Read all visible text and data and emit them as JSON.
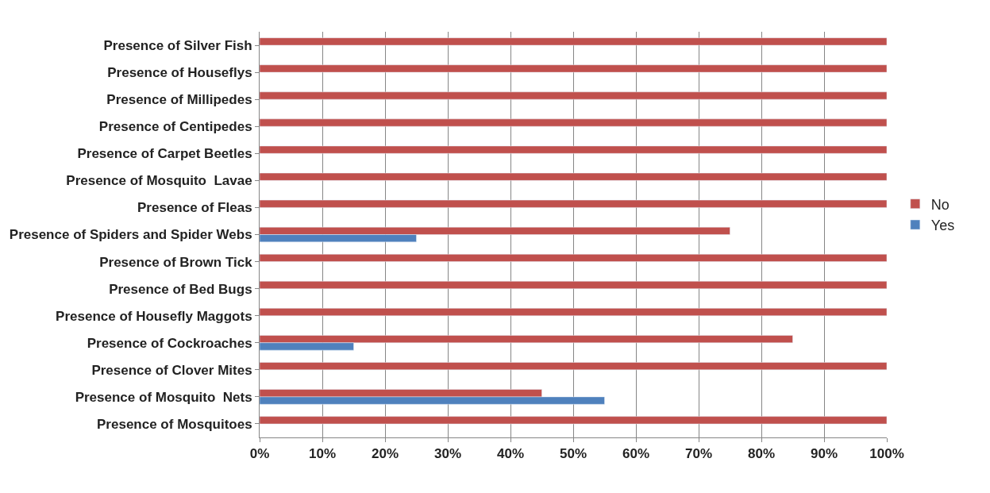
{
  "chart_data": {
    "type": "bar",
    "orientation": "horizontal",
    "categories": [
      "Presence of Silver Fish",
      "Presence of Houseflys",
      "Presence of Millipedes",
      "Presence of Centipedes",
      "Presence of Carpet Beetles",
      "Presence of Mosquito  Lavae",
      "Presence of Fleas",
      "Presence of Spiders and Spider Webs",
      "Presence of Brown Tick",
      "Presence of Bed Bugs",
      "Presence of Housefly Maggots",
      "Presence of Cockroaches",
      "Presence of Clover Mites",
      "Presence of Mosquito  Nets",
      "Presence of Mosquitoes"
    ],
    "series": [
      {
        "name": "No",
        "color": "#c0504d",
        "values": [
          100,
          100,
          100,
          100,
          100,
          100,
          100,
          75,
          100,
          100,
          100,
          85,
          100,
          45,
          100
        ]
      },
      {
        "name": "Yes",
        "color": "#4f81bd",
        "values": [
          null,
          null,
          null,
          null,
          null,
          null,
          null,
          25,
          null,
          null,
          null,
          15,
          null,
          55,
          null
        ]
      }
    ],
    "xlim": [
      0,
      100
    ],
    "xticks": [
      {
        "value": 0,
        "label": "0%"
      },
      {
        "value": 10,
        "label": "10%"
      },
      {
        "value": 20,
        "label": "20%"
      },
      {
        "value": 30,
        "label": "30%"
      },
      {
        "value": 40,
        "label": "40%"
      },
      {
        "value": 50,
        "label": "50%"
      },
      {
        "value": 60,
        "label": "60%"
      },
      {
        "value": 70,
        "label": "70%"
      },
      {
        "value": 80,
        "label": "80%"
      },
      {
        "value": 90,
        "label": "90%"
      },
      {
        "value": 100,
        "label": "100%"
      }
    ],
    "grid": "x",
    "legend": "right"
  }
}
